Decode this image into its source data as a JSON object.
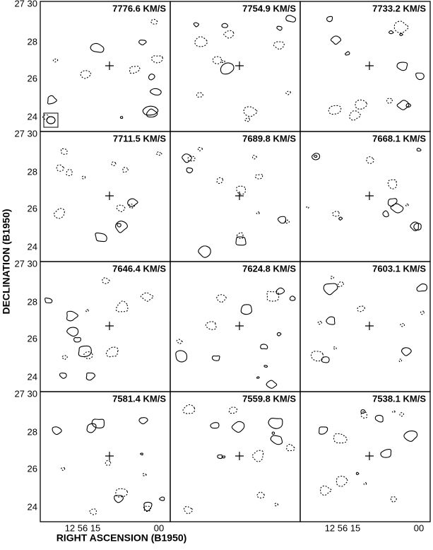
{
  "panels": [
    {
      "label": "7776.6 KM/S"
    },
    {
      "label": "7754.9 KM/S"
    },
    {
      "label": "7733.2 KM/S"
    },
    {
      "label": "7711.5 KM/S"
    },
    {
      "label": "7689.8 KM/S"
    },
    {
      "label": "7668.1 KM/S"
    },
    {
      "label": "7646.4 KM/S"
    },
    {
      "label": "7624.8 KM/S"
    },
    {
      "label": "7603.1 KM/S"
    },
    {
      "label": "7581.4 KM/S"
    },
    {
      "label": "7559.8 KM/S"
    },
    {
      "label": "7538.1 KM/S"
    }
  ],
  "y_axis": {
    "label": "DECLINATION (B1950)",
    "ticks": [
      "27 30",
      "28",
      "26",
      "24"
    ]
  },
  "x_axis": {
    "label": "RIGHT ASCENSION (B1950)",
    "ticks": [
      "12 56 15",
      "00"
    ]
  }
}
